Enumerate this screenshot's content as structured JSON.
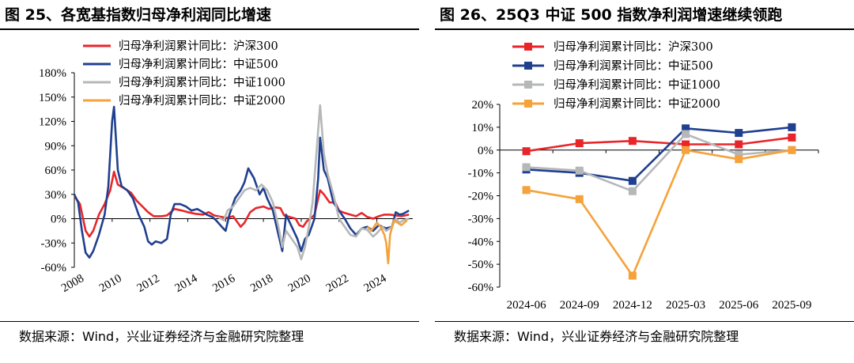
{
  "left": {
    "title": "图 25、各宽基指数归母净利润同比增速",
    "source": "数据来源：Wind，兴业证券经济与金融研究院整理"
  },
  "right": {
    "title": "图 26、25Q3 中证 500 指数净利润增速继续领跑",
    "source": "数据来源：Wind，兴业证券经济与金融研究院整理"
  },
  "chart_data": [
    {
      "type": "line",
      "title": "图 25、各宽基指数归母净利润同比增速",
      "x_ticks": [
        "2008",
        "2010",
        "2012",
        "2014",
        "2016",
        "2018",
        "2020",
        "2022",
        "2024"
      ],
      "xlim": [
        2008,
        2025.9
      ],
      "ylim": [
        -60,
        180
      ],
      "y_ticks": [
        "180%",
        "150%",
        "120%",
        "90%",
        "60%",
        "30%",
        "0%",
        "-30%",
        "-60%"
      ],
      "y_tick_values": [
        180,
        150,
        120,
        90,
        60,
        30,
        0,
        -30,
        -60
      ],
      "legend_position": "top-left",
      "series": [
        {
          "name": "归母净利润累计同比：沪深300",
          "color": "#e8262a",
          "points": [
            [
              2008,
              28
            ],
            [
              2008.3,
              18
            ],
            [
              2008.6,
              -15
            ],
            [
              2008.8,
              -22
            ],
            [
              2009.0,
              -15
            ],
            [
              2009.3,
              5
            ],
            [
              2009.6,
              18
            ],
            [
              2009.9,
              35
            ],
            [
              2010.1,
              58
            ],
            [
              2010.3,
              42
            ],
            [
              2010.6,
              38
            ],
            [
              2011.0,
              32
            ],
            [
              2011.3,
              22
            ],
            [
              2011.6,
              15
            ],
            [
              2011.9,
              8
            ],
            [
              2012.2,
              3
            ],
            [
              2012.6,
              3
            ],
            [
              2012.9,
              4
            ],
            [
              2013.3,
              12
            ],
            [
              2013.7,
              10
            ],
            [
              2014.0,
              8
            ],
            [
              2014.4,
              6
            ],
            [
              2014.8,
              5
            ],
            [
              2015.1,
              8
            ],
            [
              2015.4,
              4
            ],
            [
              2015.8,
              2
            ],
            [
              2016.1,
              1
            ],
            [
              2016.4,
              3
            ],
            [
              2016.8,
              -10
            ],
            [
              2017.0,
              -5
            ],
            [
              2017.3,
              8
            ],
            [
              2017.6,
              13
            ],
            [
              2018.0,
              15
            ],
            [
              2018.3,
              12
            ],
            [
              2018.6,
              14
            ],
            [
              2018.9,
              13
            ],
            [
              2019.1,
              4
            ],
            [
              2019.4,
              2
            ],
            [
              2019.7,
              0
            ],
            [
              2019.9,
              -8
            ],
            [
              2020.1,
              -10
            ],
            [
              2020.3,
              -3
            ],
            [
              2020.5,
              0
            ],
            [
              2020.7,
              5
            ],
            [
              2021.0,
              35
            ],
            [
              2021.2,
              30
            ],
            [
              2021.5,
              20
            ],
            [
              2021.8,
              20
            ],
            [
              2022.0,
              10
            ],
            [
              2022.3,
              7
            ],
            [
              2022.6,
              5
            ],
            [
              2022.9,
              3
            ],
            [
              2023.2,
              7
            ],
            [
              2023.5,
              2
            ],
            [
              2023.8,
              0
            ],
            [
              2024.1,
              3
            ],
            [
              2024.4,
              5
            ],
            [
              2024.7,
              5
            ],
            [
              2025.0,
              4
            ],
            [
              2025.3,
              3
            ],
            [
              2025.7,
              5
            ]
          ]
        },
        {
          "name": "归母净利润累计同比：中证500",
          "color": "#1f3f8f",
          "points": [
            [
              2008,
              30
            ],
            [
              2008.2,
              20
            ],
            [
              2008.4,
              -15
            ],
            [
              2008.6,
              -42
            ],
            [
              2008.8,
              -48
            ],
            [
              2009.0,
              -40
            ],
            [
              2009.3,
              -20
            ],
            [
              2009.6,
              5
            ],
            [
              2009.8,
              40
            ],
            [
              2010.0,
              120
            ],
            [
              2010.1,
              138
            ],
            [
              2010.3,
              60
            ],
            [
              2010.5,
              40
            ],
            [
              2010.8,
              35
            ],
            [
              2011.1,
              25
            ],
            [
              2011.4,
              5
            ],
            [
              2011.7,
              -10
            ],
            [
              2011.9,
              -28
            ],
            [
              2012.1,
              -32
            ],
            [
              2012.3,
              -28
            ],
            [
              2012.6,
              -30
            ],
            [
              2012.9,
              -25
            ],
            [
              2013.1,
              5
            ],
            [
              2013.3,
              18
            ],
            [
              2013.6,
              18
            ],
            [
              2013.9,
              15
            ],
            [
              2014.2,
              10
            ],
            [
              2014.5,
              12
            ],
            [
              2014.8,
              8
            ],
            [
              2015.0,
              5
            ],
            [
              2015.3,
              2
            ],
            [
              2015.5,
              -2
            ],
            [
              2015.8,
              -10
            ],
            [
              2016.0,
              -15
            ],
            [
              2016.2,
              5
            ],
            [
              2016.5,
              25
            ],
            [
              2016.8,
              35
            ],
            [
              2017.0,
              45
            ],
            [
              2017.2,
              62
            ],
            [
              2017.5,
              50
            ],
            [
              2017.8,
              30
            ],
            [
              2018.0,
              38
            ],
            [
              2018.2,
              25
            ],
            [
              2018.5,
              10
            ],
            [
              2018.8,
              -20
            ],
            [
              2019.0,
              -40
            ],
            [
              2019.2,
              5
            ],
            [
              2019.5,
              -10
            ],
            [
              2019.8,
              -25
            ],
            [
              2020.0,
              -40
            ],
            [
              2020.2,
              -25
            ],
            [
              2020.4,
              -20
            ],
            [
              2020.7,
              0
            ],
            [
              2020.9,
              50
            ],
            [
              2021.0,
              100
            ],
            [
              2021.2,
              60
            ],
            [
              2021.4,
              50
            ],
            [
              2021.7,
              20
            ],
            [
              2022.0,
              10
            ],
            [
              2022.3,
              0
            ],
            [
              2022.6,
              -12
            ],
            [
              2022.9,
              -20
            ],
            [
              2023.2,
              -12
            ],
            [
              2023.5,
              -10
            ],
            [
              2023.8,
              -15
            ],
            [
              2024.1,
              -8
            ],
            [
              2024.3,
              -10
            ],
            [
              2024.5,
              -12
            ],
            [
              2024.8,
              -10
            ],
            [
              2025.0,
              8
            ],
            [
              2025.2,
              5
            ],
            [
              2025.4,
              6
            ],
            [
              2025.7,
              10
            ]
          ]
        },
        {
          "name": "归母净利润累计同比：中证1000",
          "color": "#b6b7b9",
          "points": [
            [
              2015.6,
              2
            ],
            [
              2015.9,
              -2
            ],
            [
              2016.1,
              10
            ],
            [
              2016.4,
              15
            ],
            [
              2016.7,
              25
            ],
            [
              2017.0,
              35
            ],
            [
              2017.3,
              38
            ],
            [
              2017.6,
              35
            ],
            [
              2017.9,
              42
            ],
            [
              2018.2,
              35
            ],
            [
              2018.5,
              20
            ],
            [
              2018.8,
              -10
            ],
            [
              2019.0,
              -35
            ],
            [
              2019.2,
              -15
            ],
            [
              2019.5,
              -25
            ],
            [
              2019.8,
              -35
            ],
            [
              2020.0,
              -50
            ],
            [
              2020.2,
              -35
            ],
            [
              2020.4,
              -10
            ],
            [
              2020.6,
              20
            ],
            [
              2020.8,
              80
            ],
            [
              2021.0,
              140
            ],
            [
              2021.2,
              80
            ],
            [
              2021.4,
              55
            ],
            [
              2021.7,
              30
            ],
            [
              2022.0,
              0
            ],
            [
              2022.3,
              -10
            ],
            [
              2022.6,
              -20
            ],
            [
              2022.9,
              -22
            ],
            [
              2023.2,
              -12
            ],
            [
              2023.5,
              -14
            ],
            [
              2023.8,
              -22
            ],
            [
              2024.0,
              -18
            ],
            [
              2024.3,
              -10
            ],
            [
              2024.5,
              -15
            ],
            [
              2024.8,
              -10
            ],
            [
              2025.0,
              0
            ],
            [
              2025.2,
              -5
            ],
            [
              2025.4,
              -2
            ],
            [
              2025.7,
              0
            ]
          ]
        },
        {
          "name": "归母净利润累计同比：中证2000",
          "color": "#f5a23a",
          "points": [
            [
              2023.5,
              -10
            ],
            [
              2023.7,
              -15
            ],
            [
              2024.0,
              -5
            ],
            [
              2024.2,
              -10
            ],
            [
              2024.4,
              -20
            ],
            [
              2024.5,
              -30
            ],
            [
              2024.6,
              -55
            ],
            [
              2024.7,
              -20
            ],
            [
              2024.9,
              -2
            ],
            [
              2025.1,
              -5
            ],
            [
              2025.3,
              -8
            ],
            [
              2025.6,
              -2
            ]
          ]
        }
      ]
    },
    {
      "type": "line",
      "title": "图 26、25Q3 中证 500 指数净利润增速继续领跑",
      "categories": [
        "2024-06",
        "2024-09",
        "2024-12",
        "2025-03",
        "2025-06",
        "2025-09"
      ],
      "ylim": [
        -60,
        20
      ],
      "y_ticks": [
        "20%",
        "10%",
        "0%",
        "-10%",
        "-20%",
        "-30%",
        "-40%",
        "-50%",
        "-60%"
      ],
      "y_tick_values": [
        20,
        10,
        0,
        -10,
        -20,
        -30,
        -40,
        -50,
        -60
      ],
      "legend_position": "top-left",
      "series": [
        {
          "name": "归母净利润累计同比：沪深300",
          "color": "#e8262a",
          "values": [
            -0.5,
            3,
            4,
            2.5,
            2.5,
            5.5
          ]
        },
        {
          "name": "归母净利润累计同比：中证500",
          "color": "#1f3f8f",
          "values": [
            -8.5,
            -10,
            -13.5,
            9.5,
            7.5,
            10
          ]
        },
        {
          "name": "归母净利润累计同比：中证1000",
          "color": "#b6b7b9",
          "values": [
            -7.5,
            -9,
            -18,
            7,
            -2,
            0
          ]
        },
        {
          "name": "归母净利润累计同比：中证2000",
          "color": "#f5a23a",
          "values": [
            -17.5,
            -21.5,
            -55,
            0,
            -4,
            0
          ]
        }
      ]
    }
  ]
}
